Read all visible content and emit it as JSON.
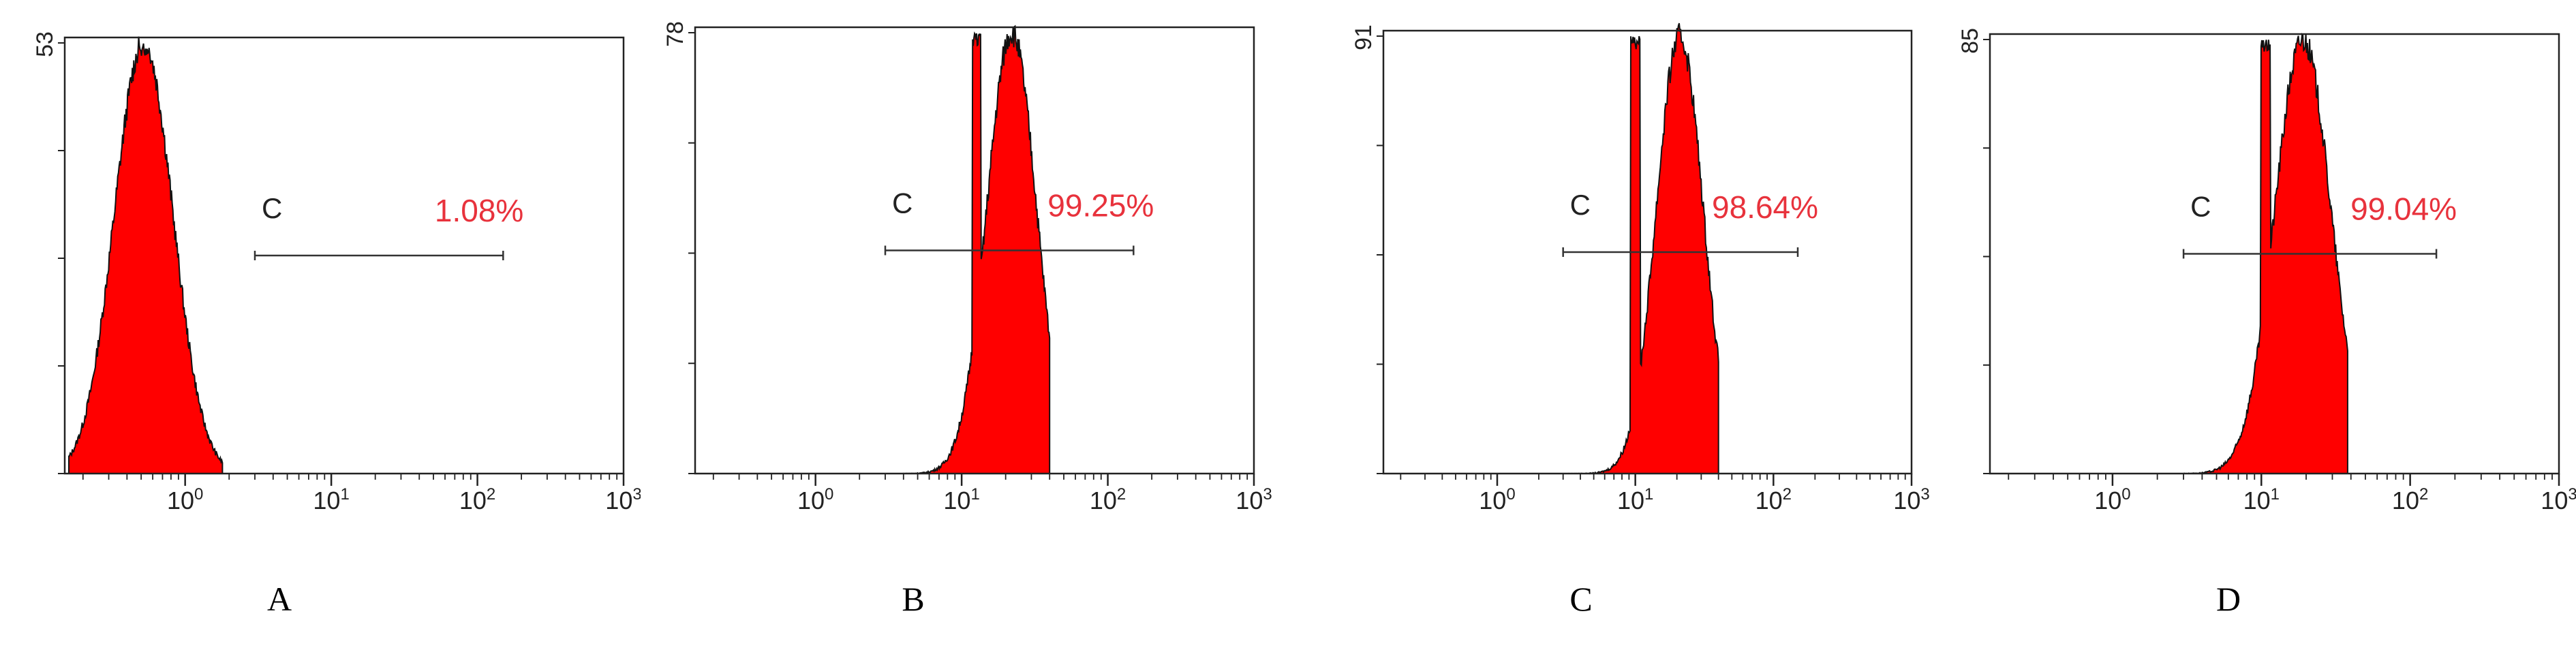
{
  "chart_data": [
    {
      "type": "area",
      "caption": "A",
      "y_max_label": "53",
      "gate": {
        "label": "C",
        "percent": "1.08%",
        "from": 3,
        "to": 150
      },
      "x_axis": {
        "scale": "log",
        "ticks": [
          "10^0",
          "10^1",
          "10^2",
          "10^3"
        ],
        "range": [
          0.15,
          1000
        ]
      },
      "y_range": [
        0,
        53
      ],
      "histogram": {
        "mode": 0.52,
        "sigma": 0.2,
        "peak": 53,
        "lo": 0.16,
        "hi": 1.8
      },
      "fill_color": "#ff0000"
    },
    {
      "type": "area",
      "caption": "B",
      "y_max_label": "78",
      "gate": {
        "label": "C",
        "percent": "99.25%",
        "from": 3,
        "to": 150
      },
      "x_axis": {
        "scale": "log",
        "ticks": [
          "10^0",
          "10^1",
          "10^2",
          "10^3"
        ],
        "range": [
          0.15,
          1000
        ]
      },
      "y_range": [
        0,
        78
      ],
      "histogram": {
        "mode": 22,
        "sigma": 0.17,
        "peak": 78,
        "lo": 4,
        "hi": 40
      },
      "fill_color": "#ff0000"
    },
    {
      "type": "area",
      "caption": "C",
      "y_max_label": "91",
      "gate": {
        "label": "C",
        "percent": "98.64%",
        "from": 3,
        "to": 150
      },
      "x_axis": {
        "scale": "log",
        "ticks": [
          "10^0",
          "10^1",
          "10^2",
          "10^3"
        ],
        "range": [
          0.15,
          1000
        ]
      },
      "y_range": [
        0,
        91
      ],
      "histogram": {
        "mode": 21,
        "sigma": 0.17,
        "peak": 91,
        "lo": 2.5,
        "hi": 40
      },
      "fill_color": "#ff0000"
    },
    {
      "type": "area",
      "caption": "D",
      "y_max_label": "85",
      "gate": {
        "label": "C",
        "percent": "99.04%",
        "from": 3,
        "to": 150
      },
      "x_axis": {
        "scale": "log",
        "ticks": [
          "10^0",
          "10^1",
          "10^2",
          "10^3"
        ],
        "range": [
          0.15,
          1000
        ]
      },
      "y_range": [
        0,
        85
      ],
      "histogram": {
        "mode": 19,
        "sigma": 0.19,
        "peak": 85,
        "lo": 3,
        "hi": 38
      },
      "fill_color": "#ff0000"
    }
  ],
  "colors": {
    "histogram_fill": "#ff0000",
    "percent_text": "#e8323c",
    "axis": "#222222"
  }
}
